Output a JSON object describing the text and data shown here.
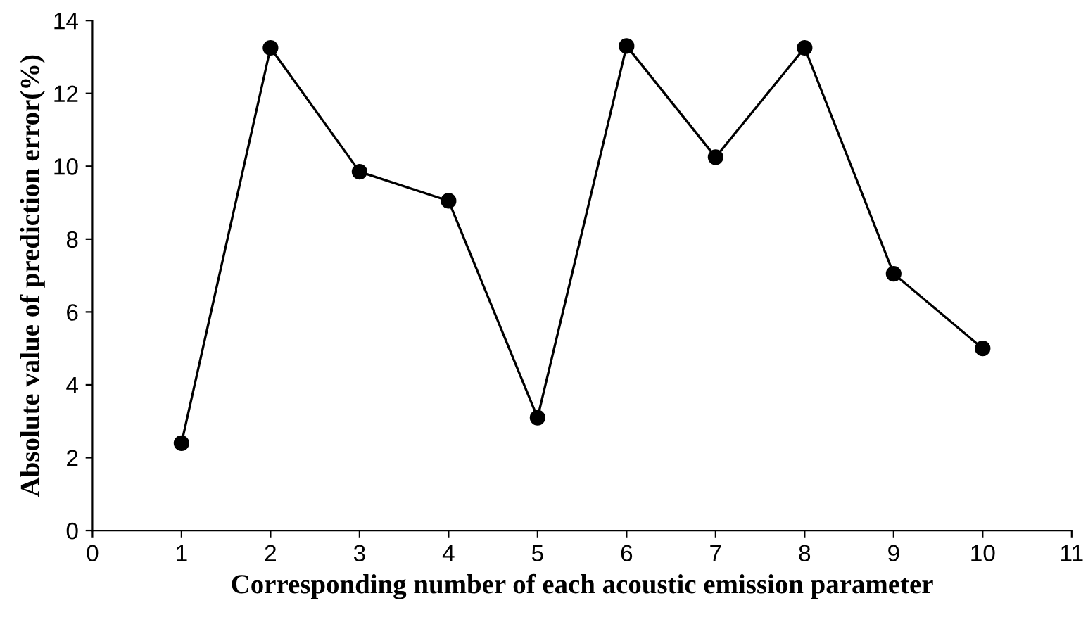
{
  "chart_data": {
    "type": "line",
    "xlabel": "Corresponding number of each acoustic emission parameter",
    "ylabel": "Absolute value of prediction error(%)",
    "x": [
      1,
      2,
      3,
      4,
      5,
      6,
      7,
      8,
      9,
      10
    ],
    "series": [
      {
        "color": "#000000",
        "values": [
          2.4,
          13.25,
          9.85,
          9.05,
          3.1,
          13.3,
          10.25,
          13.25,
          7.05,
          5.0
        ]
      }
    ],
    "xlim": [
      0,
      11
    ],
    "xticks": [
      0,
      1,
      2,
      3,
      4,
      5,
      6,
      7,
      8,
      9,
      10,
      11
    ],
    "ylim": [
      0,
      14
    ],
    "yticks": [
      0,
      2,
      4,
      6,
      8,
      10,
      12,
      14
    ],
    "grid": false,
    "legend": false,
    "marker": "circle",
    "line_style": "solid"
  }
}
